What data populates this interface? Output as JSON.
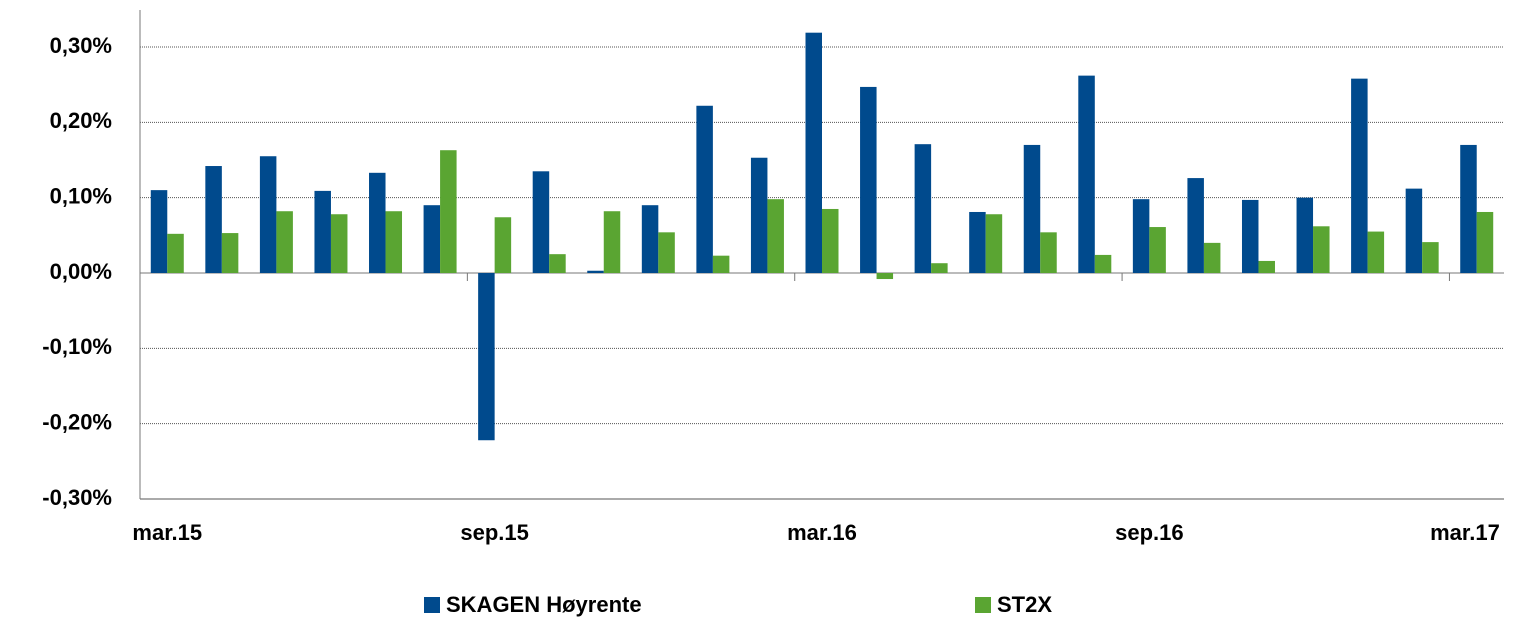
{
  "chart_data": {
    "type": "bar",
    "categories": [
      "mar.15",
      null,
      null,
      null,
      null,
      null,
      "sep.15",
      null,
      null,
      null,
      null,
      null,
      "mar.16",
      null,
      null,
      null,
      null,
      null,
      "sep.16",
      null,
      null,
      null,
      null,
      null,
      "mar.17"
    ],
    "series": [
      {
        "name": "SKAGEN Høyrente",
        "color": "#004a8d",
        "values": [
          0.11,
          0.142,
          0.155,
          0.109,
          0.133,
          0.09,
          -0.222,
          0.135,
          0.003,
          0.09,
          0.222,
          0.153,
          0.319,
          0.247,
          0.171,
          0.081,
          0.17,
          0.262,
          0.098,
          0.126,
          0.097,
          0.1,
          0.258,
          0.112,
          0.17
        ]
      },
      {
        "name": "ST2X",
        "color": "#5aa532",
        "values": [
          0.052,
          0.053,
          0.082,
          0.078,
          0.082,
          0.163,
          0.074,
          0.025,
          0.082,
          0.054,
          0.023,
          0.098,
          0.085,
          -0.008,
          0.013,
          0.078,
          0.054,
          0.024,
          0.061,
          0.04,
          0.016,
          0.062,
          0.055,
          0.041,
          0.081
        ]
      }
    ],
    "ylim": [
      -0.3,
      0.3
    ],
    "yticks": [
      {
        "value": -0.3,
        "label": "-0,30%"
      },
      {
        "value": -0.2,
        "label": "-0,20%"
      },
      {
        "value": -0.1,
        "label": "-0,10%"
      },
      {
        "value": 0,
        "label": "0,00%"
      },
      {
        "value": 0.1,
        "label": "0,10%"
      },
      {
        "value": 0.2,
        "label": "0,20%"
      },
      {
        "value": 0.3,
        "label": "0,30%"
      }
    ],
    "grid": true,
    "legend": "bottom"
  }
}
